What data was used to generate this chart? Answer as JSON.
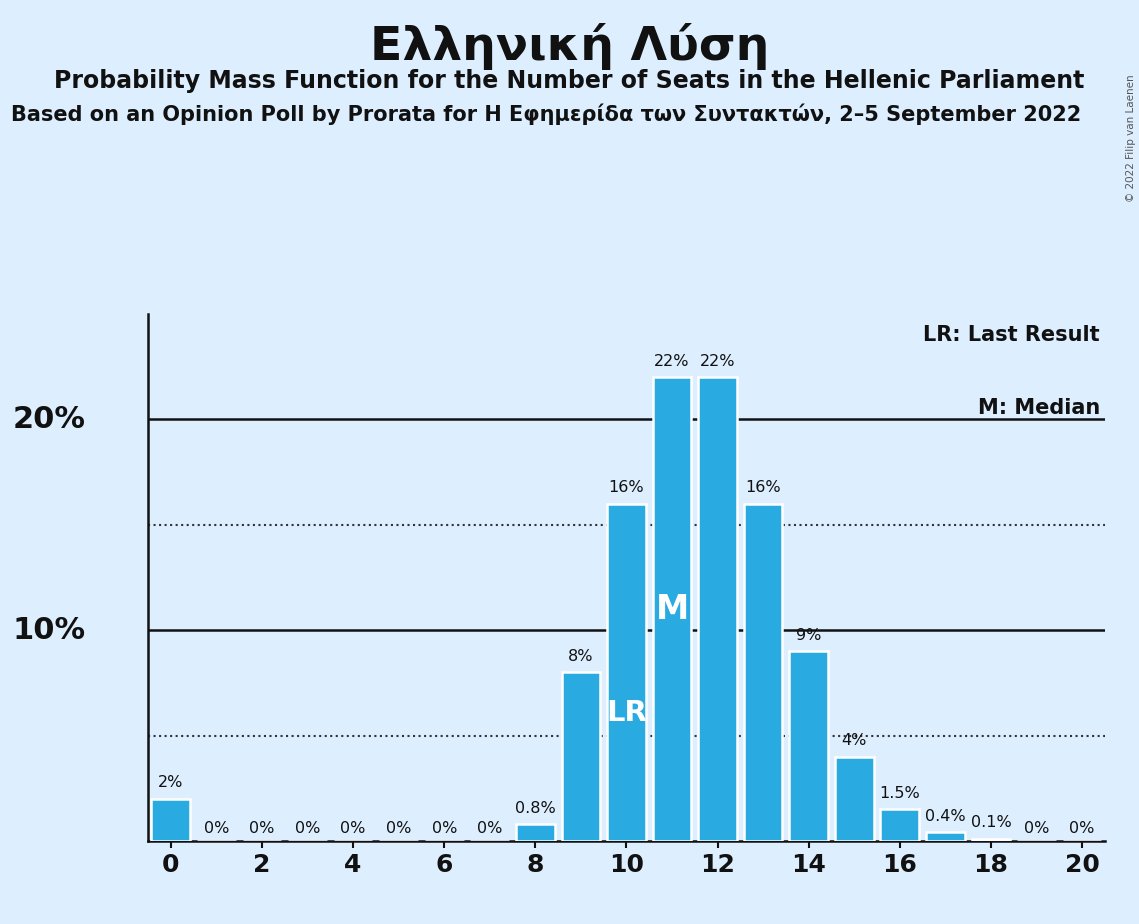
{
  "title": "Ελληνική Λύση",
  "subtitle1": "Probability Mass Function for the Number of Seats in the Hellenic Parliament",
  "subtitle2": "Based on an Opinion Poll by Prorata for Η Εφημερίδα των Συντακτών, 2–5 September 2022",
  "copyright": "© 2022 Filip van Laenen",
  "seats": [
    0,
    1,
    2,
    3,
    4,
    5,
    6,
    7,
    8,
    9,
    10,
    11,
    12,
    13,
    14,
    15,
    16,
    17,
    18,
    19,
    20
  ],
  "probabilities": [
    2.0,
    0.0,
    0.0,
    0.0,
    0.0,
    0.0,
    0.0,
    0.0,
    0.8,
    8.0,
    16.0,
    22.0,
    22.0,
    16.0,
    9.0,
    4.0,
    1.5,
    0.4,
    0.1,
    0.0,
    0.0
  ],
  "bar_labels": [
    "2%",
    "0%",
    "0%",
    "0%",
    "0%",
    "0%",
    "0%",
    "0%",
    "0.8%",
    "8%",
    "16%",
    "22%",
    "22%",
    "16%",
    "9%",
    "4%",
    "1.5%",
    "0.4%",
    "0.1%",
    "0%",
    "0%"
  ],
  "bar_color": "#29abe2",
  "background_color": "#ddeeff",
  "LR_seat": 10,
  "M_seat": 11,
  "dotted_lines": [
    5.0,
    15.0
  ],
  "solid_lines": [
    10.0,
    20.0
  ],
  "xtick_positions": [
    0,
    2,
    4,
    6,
    8,
    10,
    12,
    14,
    16,
    18,
    20
  ],
  "ytick_positions": [
    10,
    20
  ],
  "ytick_labels": [
    "10%",
    "20%"
  ],
  "xlim": [
    -0.5,
    20.5
  ],
  "ylim": [
    0,
    25
  ],
  "legend_LR": "LR: Last Result",
  "legend_M": "M: Median",
  "title_fontsize": 34,
  "subtitle1_fontsize": 17,
  "subtitle2_fontsize": 15,
  "bar_label_fontsize": 11.5,
  "ytick_fontsize": 22,
  "xtick_fontsize": 18
}
